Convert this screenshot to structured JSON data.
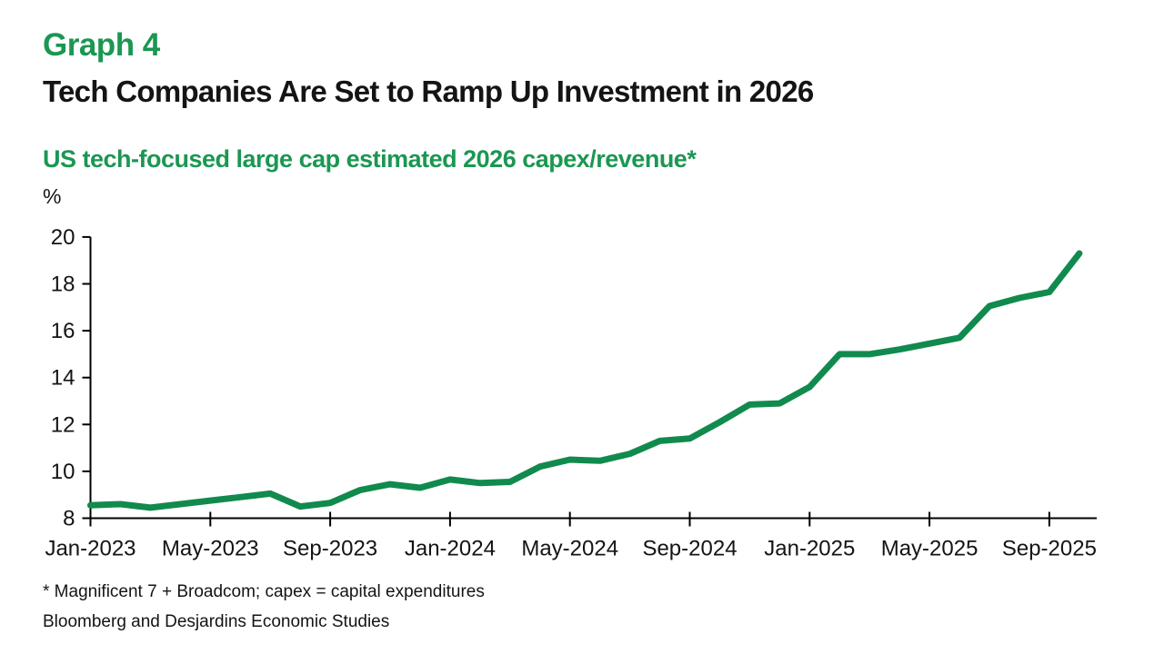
{
  "header": {
    "graph_label": "Graph 4",
    "title": "Tech Companies Are Set to Ramp Up Investment in 2026"
  },
  "footnotes": {
    "note": "* Magnificent 7 + Broadcom; capex = capital expenditures",
    "source": "Bloomberg and Desjardins Economic Studies"
  },
  "colors": {
    "heading_green": "#1b9752",
    "line_green": "#118a4e",
    "axis_black": "#000000",
    "text_black": "#141414"
  },
  "chart_data": {
    "type": "line",
    "title": "US tech-focused large cap estimated 2026 capex/revenue*",
    "unit_label": "%",
    "x": [
      "Jan-2023",
      "Feb-2023",
      "Mar-2023",
      "Apr-2023",
      "May-2023",
      "Jun-2023",
      "Jul-2023",
      "Aug-2023",
      "Sep-2023",
      "Oct-2023",
      "Nov-2023",
      "Dec-2023",
      "Jan-2024",
      "Feb-2024",
      "Mar-2024",
      "Apr-2024",
      "May-2024",
      "Jun-2024",
      "Jul-2024",
      "Aug-2024",
      "Sep-2024",
      "Oct-2024",
      "Nov-2024",
      "Dec-2024",
      "Jan-2025",
      "Feb-2025",
      "Mar-2025",
      "Apr-2025",
      "May-2025",
      "Jun-2025",
      "Jul-2025",
      "Aug-2025",
      "Sep-2025",
      "Oct-2025"
    ],
    "values": [
      8.55,
      8.6,
      8.45,
      8.6,
      8.75,
      8.9,
      9.05,
      8.5,
      8.65,
      9.2,
      9.45,
      9.3,
      9.65,
      9.5,
      9.55,
      10.2,
      10.5,
      10.45,
      10.75,
      11.3,
      11.4,
      12.1,
      12.85,
      12.9,
      13.6,
      15.0,
      15.0,
      15.2,
      15.45,
      15.7,
      17.05,
      17.4,
      17.65,
      19.3
    ],
    "x_tick_labels": [
      "Jan-2023",
      "May-2023",
      "Sep-2023",
      "Jan-2024",
      "May-2024",
      "Sep-2024",
      "Jan-2025",
      "May-2025",
      "Sep-2025"
    ],
    "x_tick_every_n_points": 4,
    "y_ticks": [
      8,
      10,
      12,
      14,
      16,
      18,
      20
    ],
    "ylim": [
      8,
      20
    ],
    "grid": false,
    "legend": "none",
    "line_color": "#118a4e",
    "line_width": 7
  }
}
